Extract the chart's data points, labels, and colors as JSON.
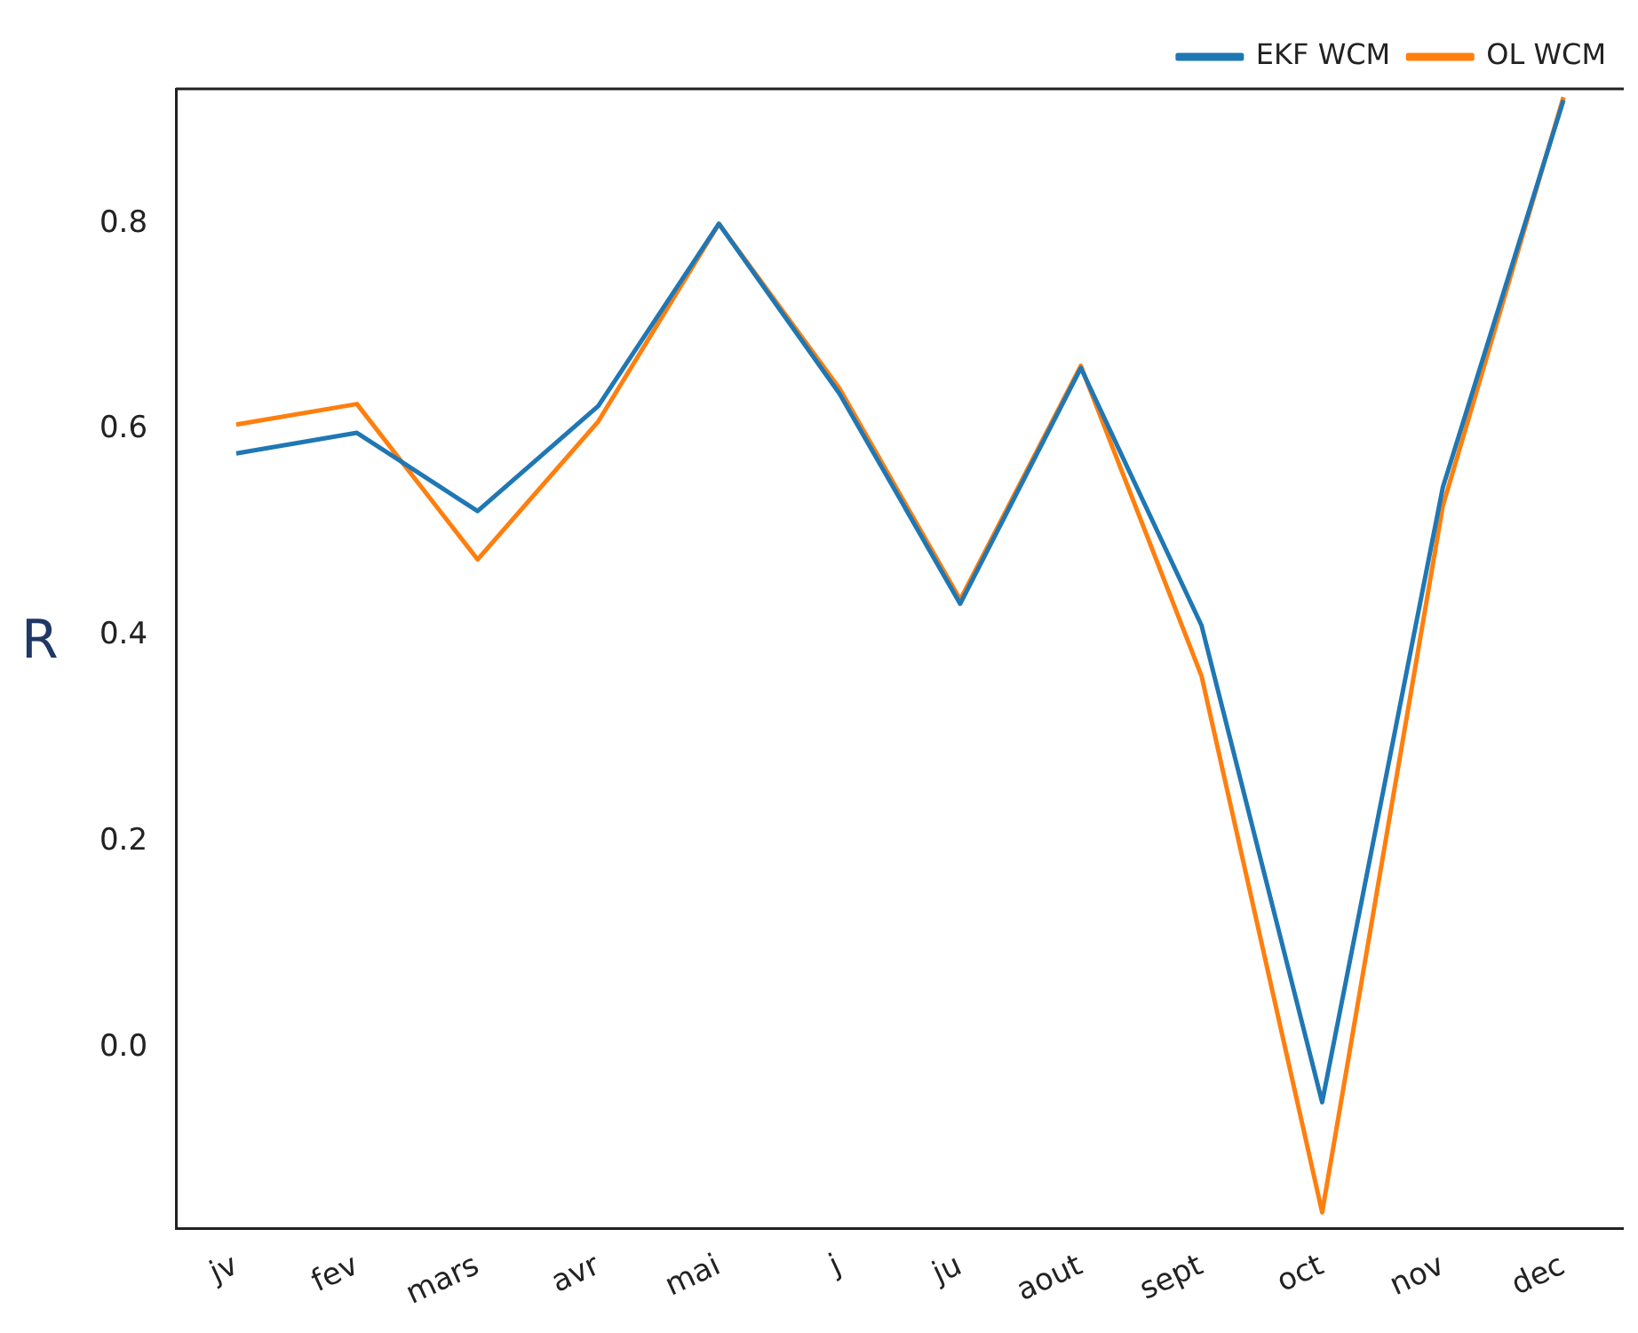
{
  "chart_data": {
    "type": "line",
    "ylabel": "R",
    "categories": [
      "jv",
      "fev",
      "mars",
      "avr",
      "mai",
      "j",
      "ju",
      "aout",
      "sept",
      "oct",
      "nov",
      "dec"
    ],
    "series": [
      {
        "name": "EKF WCM",
        "color": "#1f77b4",
        "values": [
          0.577,
          0.597,
          0.521,
          0.623,
          0.8,
          0.635,
          0.431,
          0.66,
          0.41,
          -0.053,
          0.544,
          0.92
        ]
      },
      {
        "name": "OL WCM",
        "color": "#ff7f0e",
        "values": [
          0.605,
          0.625,
          0.474,
          0.608,
          0.8,
          0.64,
          0.435,
          0.662,
          0.361,
          -0.16,
          0.526,
          0.923
        ]
      }
    ],
    "ylim": [
      -0.176,
      0.931
    ],
    "yticks": [
      {
        "value": 0,
        "label": "0.0"
      },
      {
        "value": 0.2,
        "label": "0.2"
      },
      {
        "value": 0.4,
        "label": "0.4"
      },
      {
        "value": 0.6,
        "label": "0.6"
      },
      {
        "value": 0.8,
        "label": "0.8"
      }
    ],
    "grid": false,
    "legend": "top right",
    "marker": "none",
    "line_style": "solid"
  }
}
